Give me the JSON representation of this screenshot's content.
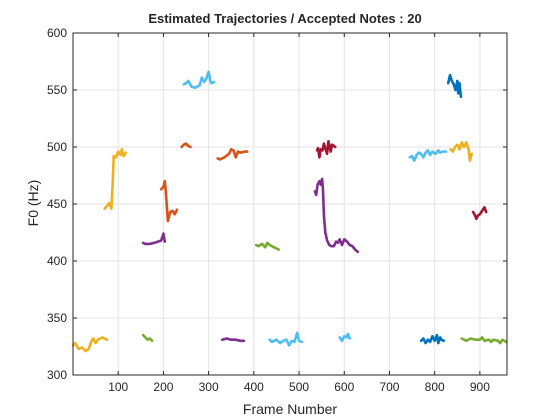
{
  "chart_data": {
    "type": "line",
    "title": "Estimated Trajectories / Accepted Notes : 20",
    "xlabel": "Frame Number",
    "ylabel": "F0 (Hz)",
    "xlim": [
      0,
      960
    ],
    "ylim": [
      300,
      600
    ],
    "xticks": [
      100,
      200,
      300,
      400,
      500,
      600,
      700,
      800,
      900
    ],
    "yticks": [
      300,
      350,
      400,
      450,
      500,
      550,
      600
    ],
    "grid": true,
    "series": [
      {
        "color": "#EDB120",
        "points": [
          [
            0,
            326
          ],
          [
            5,
            328
          ],
          [
            12,
            323
          ],
          [
            20,
            324
          ],
          [
            28,
            321
          ],
          [
            35,
            323
          ],
          [
            40,
            329
          ],
          [
            45,
            332
          ],
          [
            50,
            328
          ],
          [
            55,
            331
          ],
          [
            65,
            333
          ],
          [
            70,
            332
          ],
          [
            75,
            331
          ]
        ]
      },
      {
        "color": "#EDB120",
        "points": [
          [
            70,
            446
          ],
          [
            75,
            448
          ],
          [
            80,
            451
          ],
          [
            85,
            446
          ],
          [
            88,
            470
          ],
          [
            90,
            492
          ],
          [
            95,
            491
          ],
          [
            100,
            496
          ],
          [
            105,
            493
          ],
          [
            108,
            498
          ],
          [
            112,
            492
          ],
          [
            117,
            495
          ]
        ]
      },
      {
        "color": "#77AC30",
        "points": [
          [
            155,
            335
          ],
          [
            160,
            333
          ],
          [
            165,
            331
          ],
          [
            170,
            332
          ],
          [
            175,
            330
          ]
        ]
      },
      {
        "color": "#7E2F8E",
        "points": [
          [
            155,
            416
          ],
          [
            160,
            415
          ],
          [
            170,
            415
          ],
          [
            180,
            416
          ],
          [
            188,
            417
          ],
          [
            195,
            418
          ],
          [
            200,
            424
          ],
          [
            203,
            417
          ]
        ]
      },
      {
        "color": "#D95319",
        "points": [
          [
            195,
            463
          ],
          [
            200,
            465
          ],
          [
            203,
            470
          ],
          [
            205,
            462
          ],
          [
            210,
            435
          ],
          [
            215,
            443
          ],
          [
            220,
            444
          ],
          [
            225,
            441
          ],
          [
            230,
            445
          ]
        ]
      },
      {
        "color": "#D95319",
        "points": [
          [
            240,
            500
          ],
          [
            245,
            502
          ],
          [
            250,
            503
          ],
          [
            255,
            501
          ],
          [
            260,
            500
          ]
        ]
      },
      {
        "color": "#4DBEEE",
        "points": [
          [
            245,
            555
          ],
          [
            250,
            556
          ],
          [
            255,
            558
          ],
          [
            262,
            553
          ],
          [
            270,
            552
          ],
          [
            280,
            554
          ],
          [
            285,
            561
          ],
          [
            290,
            557
          ],
          [
            295,
            560
          ],
          [
            300,
            566
          ],
          [
            305,
            556
          ],
          [
            312,
            557
          ]
        ]
      },
      {
        "color": "#D95319",
        "points": [
          [
            320,
            490
          ],
          [
            325,
            489
          ],
          [
            335,
            491
          ],
          [
            345,
            494
          ],
          [
            350,
            498
          ],
          [
            355,
            497
          ],
          [
            360,
            491
          ],
          [
            365,
            496
          ],
          [
            370,
            495
          ],
          [
            380,
            496
          ],
          [
            385,
            496
          ]
        ]
      },
      {
        "color": "#7E2F8E",
        "points": [
          [
            330,
            331
          ],
          [
            340,
            332
          ],
          [
            350,
            331
          ],
          [
            360,
            331
          ],
          [
            370,
            330
          ],
          [
            378,
            330
          ]
        ]
      },
      {
        "color": "#77AC30",
        "points": [
          [
            405,
            414
          ],
          [
            410,
            413
          ],
          [
            418,
            415
          ],
          [
            425,
            412
          ],
          [
            430,
            416
          ],
          [
            435,
            414
          ],
          [
            440,
            413
          ],
          [
            450,
            411
          ],
          [
            455,
            410
          ]
        ]
      },
      {
        "color": "#4DBEEE",
        "points": [
          [
            435,
            331
          ],
          [
            440,
            329
          ],
          [
            450,
            331
          ],
          [
            458,
            328
          ],
          [
            465,
            330
          ],
          [
            472,
            331
          ],
          [
            478,
            326
          ],
          [
            484,
            330
          ],
          [
            490,
            329
          ],
          [
            496,
            337
          ],
          [
            500,
            330
          ],
          [
            506,
            329
          ]
        ]
      },
      {
        "color": "#7E2F8E",
        "points": [
          [
            535,
            461
          ],
          [
            538,
            458
          ],
          [
            541,
            467
          ],
          [
            545,
            470
          ],
          [
            548,
            467
          ],
          [
            551,
            472
          ],
          [
            553,
            462
          ],
          [
            555,
            440
          ],
          [
            558,
            425
          ],
          [
            562,
            418
          ],
          [
            567,
            414
          ],
          [
            572,
            413
          ],
          [
            577,
            413
          ],
          [
            582,
            417
          ],
          [
            586,
            416
          ],
          [
            590,
            419
          ],
          [
            595,
            414
          ],
          [
            600,
            419
          ],
          [
            606,
            417
          ],
          [
            612,
            414
          ],
          [
            618,
            413
          ],
          [
            624,
            410
          ],
          [
            630,
            408
          ]
        ]
      },
      {
        "color": "#A2142F",
        "points": [
          [
            540,
            497
          ],
          [
            542,
            499
          ],
          [
            545,
            491
          ],
          [
            548,
            498
          ],
          [
            552,
            497
          ],
          [
            555,
            503
          ],
          [
            558,
            499
          ],
          [
            562,
            494
          ],
          [
            565,
            505
          ],
          [
            570,
            496
          ],
          [
            573,
            502
          ],
          [
            577,
            501
          ],
          [
            580,
            500
          ]
        ]
      },
      {
        "color": "#4DBEEE",
        "points": [
          [
            590,
            333
          ],
          [
            595,
            330
          ],
          [
            600,
            334
          ],
          [
            605,
            333
          ],
          [
            608,
            336
          ],
          [
            612,
            332
          ]
        ]
      },
      {
        "color": "#4DBEEE",
        "points": [
          [
            745,
            491
          ],
          [
            750,
            492
          ],
          [
            755,
            488
          ],
          [
            760,
            493
          ],
          [
            765,
            495
          ],
          [
            770,
            494
          ],
          [
            775,
            491
          ],
          [
            780,
            495
          ],
          [
            785,
            497
          ],
          [
            790,
            493
          ],
          [
            795,
            496
          ],
          [
            802,
            494
          ],
          [
            808,
            497
          ],
          [
            812,
            495
          ],
          [
            818,
            496
          ],
          [
            825,
            496
          ]
        ]
      },
      {
        "color": "#0072BD",
        "points": [
          [
            770,
            330
          ],
          [
            775,
            332
          ],
          [
            780,
            328
          ],
          [
            785,
            331
          ],
          [
            790,
            329
          ],
          [
            795,
            334
          ],
          [
            800,
            330
          ],
          [
            805,
            335
          ],
          [
            808,
            328
          ],
          [
            812,
            333
          ],
          [
            815,
            331
          ],
          [
            820,
            330
          ]
        ]
      },
      {
        "color": "#0072BD",
        "points": [
          [
            830,
            556
          ],
          [
            834,
            563
          ],
          [
            838,
            558
          ],
          [
            842,
            555
          ],
          [
            846,
            550
          ],
          [
            850,
            558
          ],
          [
            852,
            547
          ],
          [
            855,
            556
          ],
          [
            858,
            544
          ]
        ]
      },
      {
        "color": "#EDB120",
        "points": [
          [
            835,
            498
          ],
          [
            840,
            496
          ],
          [
            845,
            500
          ],
          [
            850,
            502
          ],
          [
            855,
            498
          ],
          [
            860,
            504
          ],
          [
            865,
            500
          ],
          [
            870,
            504
          ],
          [
            875,
            498
          ],
          [
            878,
            488
          ],
          [
            882,
            494
          ]
        ]
      },
      {
        "color": "#A2142F",
        "points": [
          [
            885,
            443
          ],
          [
            888,
            441
          ],
          [
            892,
            437
          ],
          [
            896,
            440
          ],
          [
            900,
            441
          ],
          [
            905,
            444
          ],
          [
            910,
            447
          ],
          [
            914,
            443
          ]
        ]
      },
      {
        "color": "#77AC30",
        "points": [
          [
            860,
            332
          ],
          [
            870,
            330
          ],
          [
            880,
            332
          ],
          [
            890,
            331
          ],
          [
            900,
            331
          ],
          [
            905,
            333
          ],
          [
            910,
            330
          ],
          [
            920,
            331
          ],
          [
            925,
            329
          ],
          [
            930,
            331
          ],
          [
            940,
            330
          ],
          [
            945,
            328
          ],
          [
            950,
            331
          ],
          [
            958,
            329
          ]
        ]
      }
    ]
  }
}
